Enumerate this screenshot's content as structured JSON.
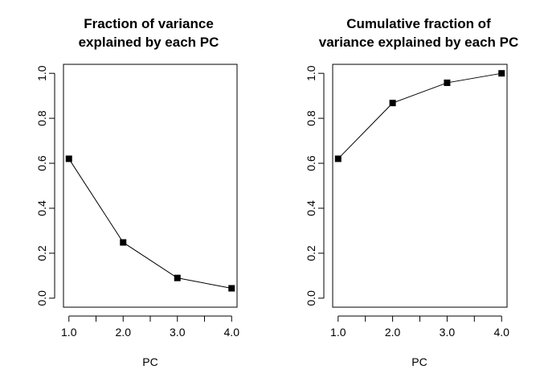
{
  "chart_data": [
    {
      "type": "line",
      "title_lines": [
        "Fraction of variance",
        "explained by each PC"
      ],
      "xlabel": "PC",
      "ylabel": "",
      "x": [
        1,
        2,
        3,
        4
      ],
      "values": [
        0.62,
        0.248,
        0.09,
        0.044
      ],
      "xlim": [
        0.9,
        4.1
      ],
      "ylim": [
        -0.04,
        1.04
      ],
      "x_ticks": [
        "1.0",
        "2.0",
        "3.0",
        "4.0"
      ],
      "y_ticks": [
        "0.0",
        "0.2",
        "0.4",
        "0.6",
        "0.8",
        "1.0"
      ],
      "marker": "square",
      "grid": false,
      "colors": {
        "line": "#000000",
        "marker": "#000000"
      }
    },
    {
      "type": "line",
      "title_lines": [
        "Cumulative fraction of",
        "variance explained by each PC"
      ],
      "xlabel": "PC",
      "ylabel": "",
      "x": [
        1,
        2,
        3,
        4
      ],
      "values": [
        0.62,
        0.868,
        0.958,
        1.0
      ],
      "xlim": [
        0.9,
        4.1
      ],
      "ylim": [
        -0.04,
        1.04
      ],
      "x_ticks": [
        "1.0",
        "2.0",
        "3.0",
        "4.0"
      ],
      "y_ticks": [
        "0.0",
        "0.2",
        "0.4",
        "0.6",
        "0.8",
        "1.0"
      ],
      "marker": "square",
      "grid": false,
      "colors": {
        "line": "#000000",
        "marker": "#000000"
      }
    }
  ]
}
